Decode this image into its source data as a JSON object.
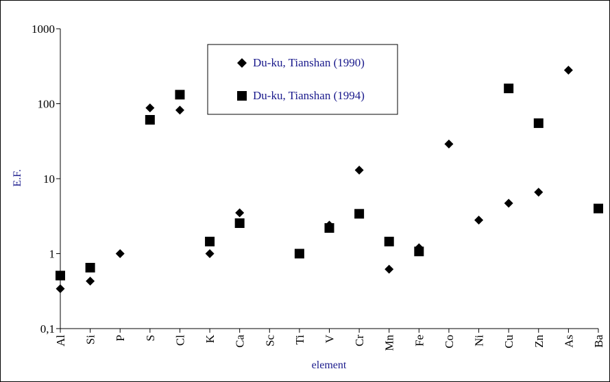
{
  "chart_data": {
    "type": "scatter",
    "title": "",
    "xlabel": "element",
    "ylabel": "E.F.",
    "yscale": "log",
    "ylim": [
      0.1,
      1000
    ],
    "y_ticks": [
      0.1,
      1,
      10,
      100,
      1000
    ],
    "y_tick_labels": [
      "0,1",
      "1",
      "10",
      "100",
      "1000"
    ],
    "grid": false,
    "legend_position": "top-center",
    "categories": [
      "Al",
      "Si",
      "P",
      "S",
      "Cl",
      "K",
      "Ca",
      "Sc",
      "Ti",
      "V",
      "Cr",
      "Mn",
      "Fe",
      "Co",
      "Ni",
      "Cu",
      "Zn",
      "As",
      "Ba"
    ],
    "series": [
      {
        "name": "Du-ku, Tianshan (1990)",
        "marker": "diamond",
        "color": "#000000",
        "values": [
          0.34,
          0.43,
          1.0,
          88,
          82,
          1.0,
          3.5,
          null,
          null,
          2.4,
          13,
          0.62,
          1.2,
          29,
          2.8,
          4.7,
          6.6,
          280,
          null
        ]
      },
      {
        "name": "Du-ku, Tianshan (1994)",
        "marker": "square",
        "color": "#000000",
        "values": [
          0.51,
          0.65,
          null,
          61,
          132,
          1.45,
          2.55,
          null,
          1.0,
          2.2,
          3.4,
          1.45,
          1.07,
          null,
          null,
          160,
          55,
          null,
          4.0
        ]
      }
    ]
  }
}
